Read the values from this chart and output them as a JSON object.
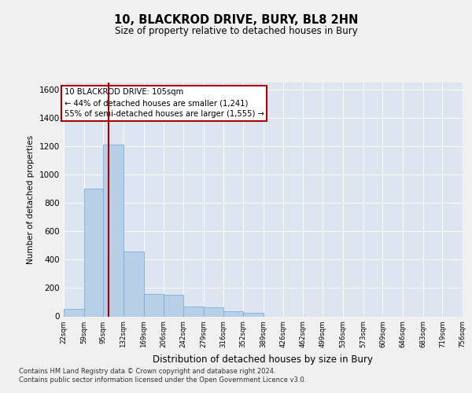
{
  "title1": "10, BLACKROD DRIVE, BURY, BL8 2HN",
  "title2": "Size of property relative to detached houses in Bury",
  "xlabel": "Distribution of detached houses by size in Bury",
  "ylabel": "Number of detached properties",
  "footer": "Contains HM Land Registry data © Crown copyright and database right 2024.\nContains public sector information licensed under the Open Government Licence v3.0.",
  "bins": [
    22,
    59,
    95,
    132,
    169,
    206,
    242,
    279,
    316,
    352,
    389,
    426,
    462,
    499,
    536,
    573,
    609,
    646,
    683,
    719,
    756
  ],
  "bar_heights": [
    50,
    900,
    1210,
    460,
    160,
    150,
    70,
    65,
    35,
    25,
    0,
    0,
    0,
    0,
    0,
    0,
    0,
    0,
    0,
    0
  ],
  "bar_color": "#b8cfe8",
  "bar_edge_color": "#7badd4",
  "property_line_x": 105,
  "vline_color": "#aa0000",
  "annotation_text": "10 BLACKROD DRIVE: 105sqm\n← 44% of detached houses are smaller (1,241)\n55% of semi-detached houses are larger (1,555) →",
  "annotation_box_edgecolor": "#aa0000",
  "ylim": [
    0,
    1650
  ],
  "yticks": [
    0,
    200,
    400,
    600,
    800,
    1000,
    1200,
    1400,
    1600
  ],
  "tick_labels": [
    "22sqm",
    "59sqm",
    "95sqm",
    "132sqm",
    "169sqm",
    "206sqm",
    "242sqm",
    "279sqm",
    "316sqm",
    "352sqm",
    "389sqm",
    "426sqm",
    "462sqm",
    "499sqm",
    "536sqm",
    "573sqm",
    "609sqm",
    "646sqm",
    "683sqm",
    "719sqm",
    "756sqm"
  ],
  "bg_color": "#dde6f0",
  "fig_bg_color": "#f0f0f0",
  "grid_color": "#ffffff"
}
